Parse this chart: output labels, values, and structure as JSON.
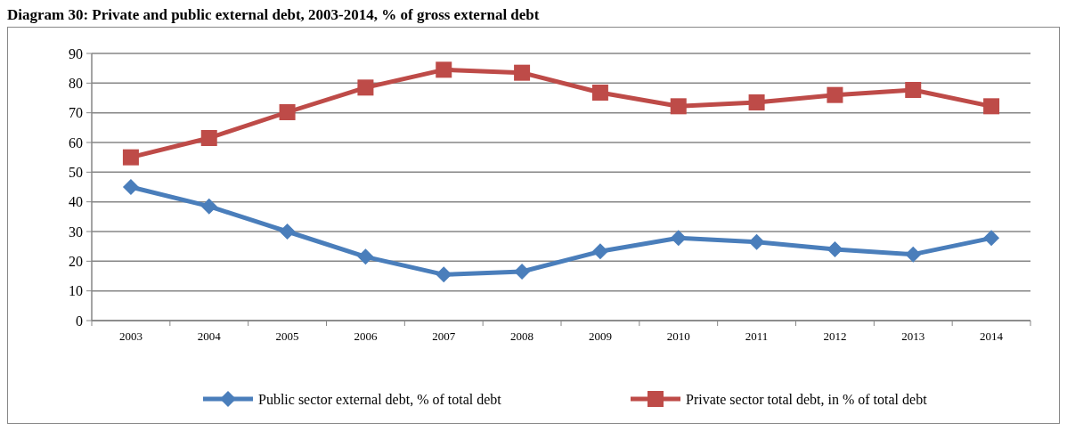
{
  "chart_data": {
    "type": "line",
    "title": "Diagram 30:      Private and public external debt, 2003-2014, % of gross external debt",
    "categories": [
      "2003",
      "2004",
      "2005",
      "2006",
      "2007",
      "2008",
      "2009",
      "2010",
      "2011",
      "2012",
      "2013",
      "2014"
    ],
    "series": [
      {
        "name": "Public sector external debt, % of total debt",
        "color": "#4a7ebb",
        "marker": "diamond",
        "values": [
          45,
          38.5,
          30,
          21.5,
          15.5,
          16.5,
          23.3,
          27.8,
          26.5,
          24,
          22.3,
          27.8
        ]
      },
      {
        "name": "Private sector total debt, in % of total debt",
        "color": "#be4b48",
        "marker": "square",
        "values": [
          55,
          61.5,
          70.2,
          78.5,
          84.5,
          83.5,
          76.8,
          72.2,
          73.5,
          76,
          77.7,
          72.2
        ]
      }
    ],
    "ylim": [
      0,
      90
    ],
    "yticks": [
      0,
      10,
      20,
      30,
      40,
      50,
      60,
      70,
      80,
      90
    ],
    "grid": "y",
    "legend": "bottom"
  }
}
